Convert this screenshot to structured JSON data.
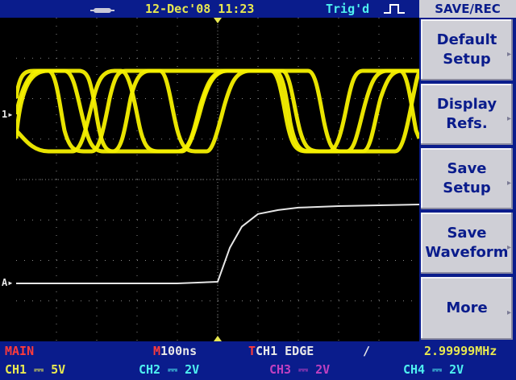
{
  "status": {
    "date_time": "12-Dec'08 11:23",
    "trigger_state": "Trig'd",
    "usb_icon": "usb-connected-icon",
    "trigger_icon": "rising-edge-icon"
  },
  "menu": {
    "title": "SAVE/REC",
    "buttons": [
      {
        "line1": "Default",
        "line2": "Setup"
      },
      {
        "line1": "Display",
        "line2": "Refs."
      },
      {
        "line1": "Save",
        "line2": "Setup"
      },
      {
        "line1": "Save",
        "line2": "Waveform"
      },
      {
        "line1": "More",
        "line2": ""
      }
    ]
  },
  "markers": {
    "ch1": "1▸",
    "math": "A▸"
  },
  "bottom": {
    "mode": "MAIN",
    "timebase_marker": "M",
    "timebase": "100ns",
    "trigger_marker": "T",
    "trigger_source": "CH1 EDGE",
    "trigger_slope": "∕",
    "frequency": "2.99999MHz",
    "channels": [
      {
        "name": "CH1",
        "scale": "5V",
        "color": "#e8e850"
      },
      {
        "name": "CH2",
        "scale": "2V",
        "color": "#4ef0f0"
      },
      {
        "name": "CH3",
        "scale": "2V",
        "color": "#c040c0"
      },
      {
        "name": "CH4",
        "scale": "2V",
        "color": "#4ef0f0"
      }
    ]
  },
  "colors": {
    "background": "#000000",
    "panel": "#0a1c8c",
    "ch1_trace": "#f5f000",
    "reference_trace": "#e6e6e6",
    "grid": "#8a8a8a"
  },
  "chart_data": {
    "type": "line",
    "grid": true,
    "series": [
      {
        "trace": "CH1 persistence (yellow)",
        "color": "#f5f000",
        "x": [
          0,
          1,
          2,
          3,
          4,
          5,
          6,
          7,
          8,
          9,
          10
        ],
        "values": [
          1,
          1,
          0,
          0,
          1,
          1,
          1,
          0,
          0,
          0,
          1
        ]
      },
      {
        "trace": "reference (white)",
        "color": "#e6e6e6",
        "x": [
          0,
          1,
          2,
          3,
          4,
          5,
          5.3,
          5.6,
          6,
          6.5,
          7,
          8,
          9,
          10
        ],
        "values": [
          0,
          0,
          0,
          0,
          0,
          0.02,
          0.45,
          0.72,
          0.88,
          0.93,
          0.96,
          0.98,
          0.99,
          1
        ]
      }
    ]
  }
}
